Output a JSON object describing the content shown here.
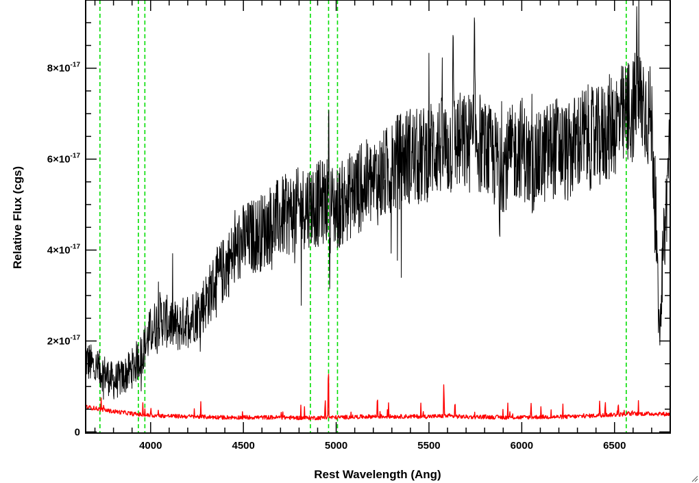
{
  "chart_data": {
    "type": "line",
    "xlabel": "Rest Wavelength (Ang)",
    "ylabel": "Relative Flux (cgs)",
    "xlim": [
      3650,
      6800
    ],
    "ylim": [
      -2.5e-19,
      9.5e-17
    ],
    "x_ticks": [
      {
        "value": 4000,
        "label": "4000"
      },
      {
        "value": 4500,
        "label": "4500"
      },
      {
        "value": 5000,
        "label": "5000"
      },
      {
        "value": 5500,
        "label": "5500"
      },
      {
        "value": 6000,
        "label": "6000"
      },
      {
        "value": 6500,
        "label": "6500"
      }
    ],
    "y_ticks": [
      {
        "value": 0,
        "mantissa": "0",
        "exponent": ""
      },
      {
        "value": 2e-17,
        "mantissa": "2×10",
        "exponent": "-17"
      },
      {
        "value": 4e-17,
        "mantissa": "4×10",
        "exponent": "-17"
      },
      {
        "value": 6e-17,
        "mantissa": "6×10",
        "exponent": "-17"
      },
      {
        "value": 8e-17,
        "mantissa": "8×10",
        "exponent": "-17"
      }
    ],
    "grid": false,
    "series": [
      {
        "color": "#000000",
        "x": [
          3650,
          3700,
          3750,
          3800,
          3850,
          3900,
          3950,
          4000,
          4050,
          4100,
          4150,
          4200,
          4250,
          4300,
          4350,
          4400,
          4450,
          4500,
          4550,
          4600,
          4650,
          4700,
          4750,
          4800,
          4850,
          4900,
          4950,
          5000,
          5050,
          5100,
          5150,
          5200,
          5250,
          5300,
          5350,
          5400,
          5450,
          5500,
          5550,
          5600,
          5650,
          5700,
          5750,
          5800,
          5850,
          5900,
          5950,
          6000,
          6050,
          6100,
          6150,
          6200,
          6250,
          6300,
          6350,
          6400,
          6450,
          6500,
          6550,
          6600,
          6650,
          6700,
          6720,
          6740,
          6760,
          6780,
          6800
        ],
        "y": [
          1.6e-17,
          1.4e-17,
          1.3e-17,
          1.1e-17,
          1.2e-17,
          1.4e-17,
          1.7e-17,
          2.2e-17,
          2.5e-17,
          2.4e-17,
          2.3e-17,
          2.5e-17,
          2.6e-17,
          2.9e-17,
          3.3e-17,
          3.6e-17,
          3.9e-17,
          4.2e-17,
          4.3e-17,
          4.4e-17,
          4.6e-17,
          4.7e-17,
          4.8e-17,
          4.9e-17,
          5e-17,
          5e-17,
          5.1e-17,
          4.9e-17,
          5.1e-17,
          5.3e-17,
          5.4e-17,
          5.5e-17,
          5.6e-17,
          5.8e-17,
          6e-17,
          6.1e-17,
          6e-17,
          6.2e-17,
          6.3e-17,
          6.2e-17,
          6.4e-17,
          6.3e-17,
          6.5e-17,
          6.2e-17,
          6e-17,
          5.9e-17,
          6.1e-17,
          6.3e-17,
          5.8e-17,
          6e-17,
          6.2e-17,
          6.3e-17,
          6.1e-17,
          6.4e-17,
          6.5e-17,
          6.4e-17,
          6.6e-17,
          6.8e-17,
          6.9e-17,
          7.1e-17,
          7.3e-17,
          6.8e-17,
          5e-17,
          2.1e-17,
          3.8e-17,
          5e-17,
          6.8e-17
        ],
        "features": [
          {
            "x": 4960,
            "y": 7.4e-17
          },
          {
            "x": 4965,
            "y": 3.1e-17
          },
          {
            "x": 5630,
            "y": 9.5e-17
          },
          {
            "x": 5745,
            "y": 9.5e-17
          },
          {
            "x": 5880,
            "y": 4.1e-17
          },
          {
            "x": 6620,
            "y": 9.5e-17
          },
          {
            "x": 6750,
            "y": 2.1e-17
          }
        ]
      },
      {
        "color": "#ff0000",
        "x": [
          3650,
          3700,
          3750,
          3800,
          3850,
          3900,
          3950,
          4000,
          4100,
          4200,
          4300,
          4400,
          4500,
          4600,
          4700,
          4800,
          4900,
          4950,
          5000,
          5100,
          5200,
          5300,
          5400,
          5500,
          5600,
          5700,
          5800,
          5900,
          6000,
          6100,
          6200,
          6300,
          6400,
          6500,
          6600,
          6700,
          6800
        ],
        "y": [
          5.5e-18,
          5.2e-18,
          4.8e-18,
          4.5e-18,
          4.3e-18,
          4e-18,
          3.8e-18,
          3.6e-18,
          3.5e-18,
          3.4e-18,
          3.3e-18,
          3.2e-18,
          3.2e-18,
          3.2e-18,
          3.2e-18,
          3.1e-18,
          3.1e-18,
          3.2e-18,
          3.2e-18,
          3.3e-18,
          3.4e-18,
          3.4e-18,
          3.4e-18,
          3.4e-18,
          3.5e-18,
          3.3e-18,
          3.3e-18,
          3.2e-18,
          3.2e-18,
          3.3e-18,
          3.3e-18,
          3.4e-18,
          3.6e-18,
          3.8e-18,
          4e-18,
          4e-18,
          3.9e-18
        ],
        "features": [
          {
            "x": 4958,
            "y": 1.75e-17
          },
          {
            "x": 5222,
            "y": 8.8e-18
          },
          {
            "x": 5580,
            "y": 1.2e-17
          },
          {
            "x": 5640,
            "y": 7.5e-18
          },
          {
            "x": 6050,
            "y": 6.5e-18
          },
          {
            "x": 6420,
            "y": 7e-18
          },
          {
            "x": 6450,
            "y": 7.2e-18
          },
          {
            "x": 6520,
            "y": 6.8e-18
          }
        ]
      }
    ],
    "vertical_lines": {
      "color": "#00dd00",
      "style": "dashed",
      "x": [
        3727,
        3934,
        3969,
        4861,
        4959,
        5007,
        6563
      ]
    }
  }
}
